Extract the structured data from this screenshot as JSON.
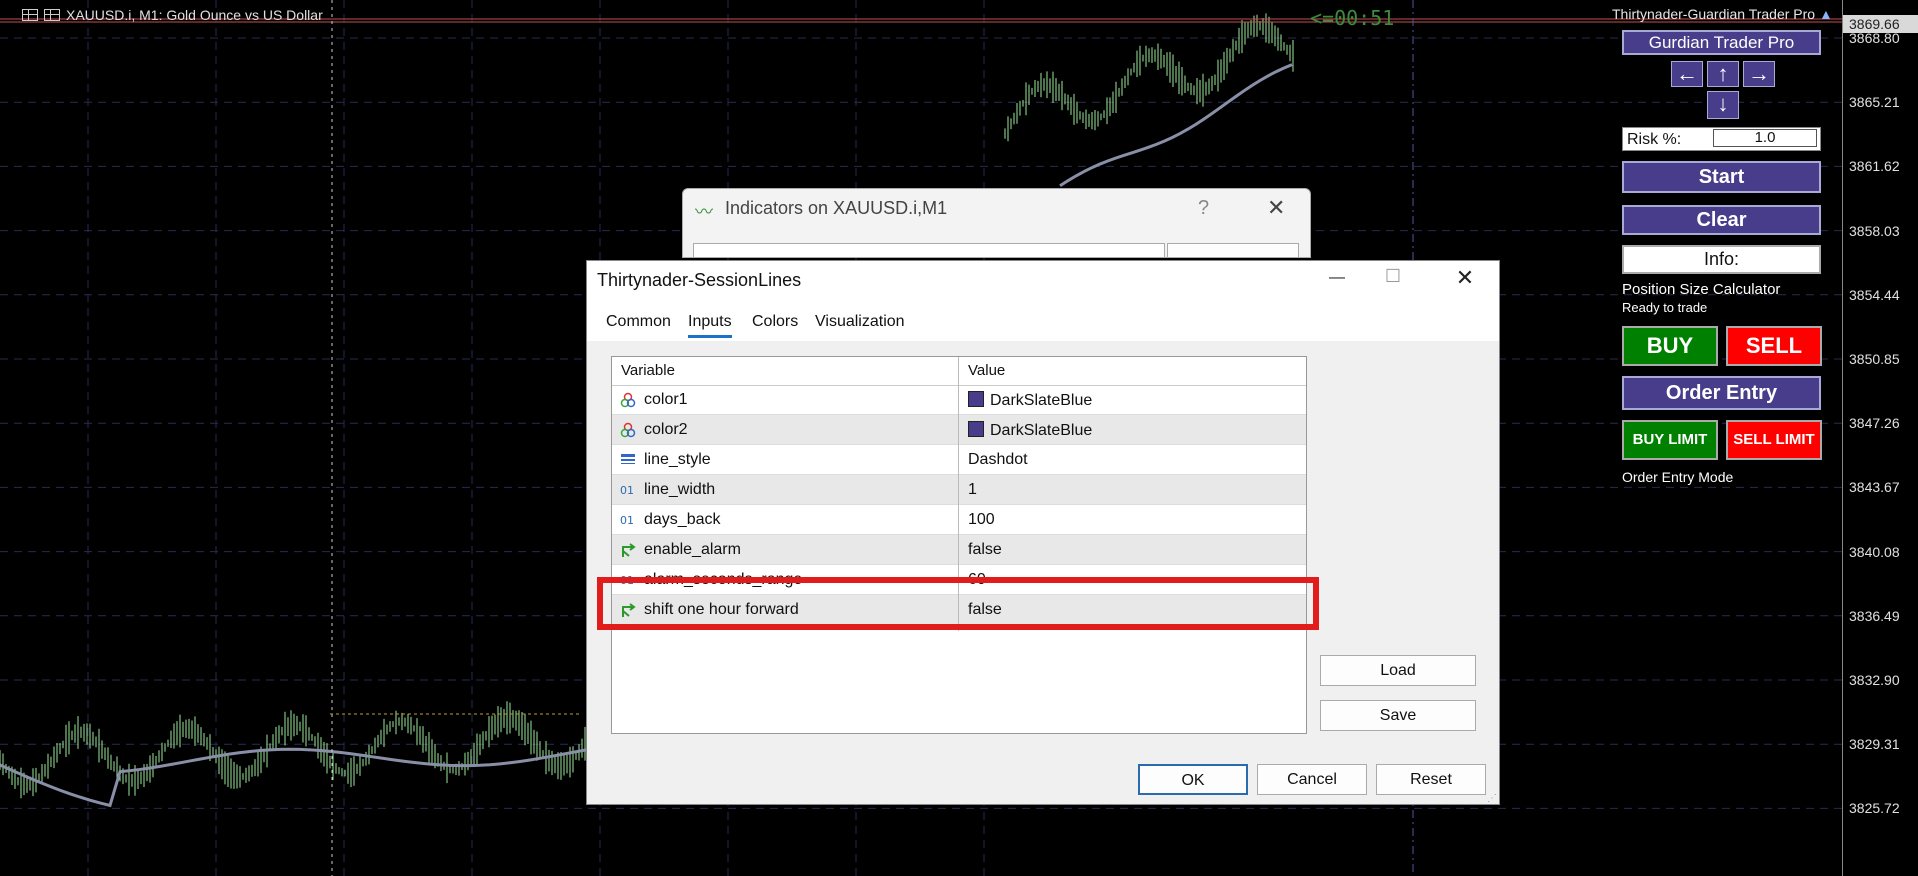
{
  "chart": {
    "title": "XAUUSD.i, M1:  Gold Ounce vs US Dollar",
    "countdown": "<=00:51",
    "ea_title": "Thirtynader-Guardian Trader Pro",
    "current_price": "3869.66",
    "price_levels": [
      "3868.80",
      "3865.21",
      "3861.62",
      "3858.03",
      "3854.44",
      "3850.85",
      "3847.26",
      "3843.67",
      "3840.08",
      "3836.49",
      "3832.90",
      "3829.31",
      "3825.72"
    ]
  },
  "panel": {
    "header": "Gurdian Trader Pro",
    "arrows": {
      "left": "←",
      "up": "↑",
      "right": "→",
      "down": "↓"
    },
    "risk_label": "Risk %:",
    "risk_value": "1.0",
    "start": "Start",
    "clear": "Clear",
    "info": "Info:",
    "calc_title": "Position Size Calculator",
    "status": "Ready to trade",
    "buy": "BUY",
    "sell": "SELL",
    "order_entry": "Order Entry",
    "buy_limit": "BUY LIMIT",
    "sell_limit": "SELL LIMIT",
    "mode": "Order Entry Mode"
  },
  "bg_dialog": {
    "title": "Indicators on XAUUSD.i,M1",
    "help": "?",
    "close": "✕"
  },
  "dialog": {
    "title": "Thirtynader-SessionLines",
    "tabs": [
      "Common",
      "Inputs",
      "Colors",
      "Visualization"
    ],
    "active_tab": "Inputs",
    "col_variable": "Variable",
    "col_value": "Value",
    "rows": [
      {
        "name": "color1",
        "value": "DarkSlateBlue",
        "icon": "color-icon",
        "swatch": "#483d8b"
      },
      {
        "name": "color2",
        "value": "DarkSlateBlue",
        "icon": "color-icon",
        "swatch": "#483d8b"
      },
      {
        "name": "line_style",
        "value": "Dashdot",
        "icon": "line-style-icon"
      },
      {
        "name": "line_width",
        "value": "1",
        "icon": "integer-icon"
      },
      {
        "name": "days_back",
        "value": "100",
        "icon": "integer-icon"
      },
      {
        "name": "enable_alarm",
        "value": "false",
        "icon": "bool-icon"
      },
      {
        "name": "alarm_seconds_range",
        "value": "60",
        "icon": "integer-icon"
      },
      {
        "name": "shift one hour forward",
        "value": "false",
        "icon": "bool-icon"
      }
    ],
    "load": "Load",
    "save": "Save",
    "ok": "OK",
    "cancel": "Cancel",
    "reset": "Reset",
    "minimize": "—",
    "maximize": "☐",
    "close": "✕"
  },
  "colors": {
    "panel_button": "#483d8b",
    "buy": "#008000",
    "sell": "#ff0000",
    "highlight": "#e21b1b",
    "candle": "#90ee90",
    "ma_line": "#8a8fa8"
  }
}
